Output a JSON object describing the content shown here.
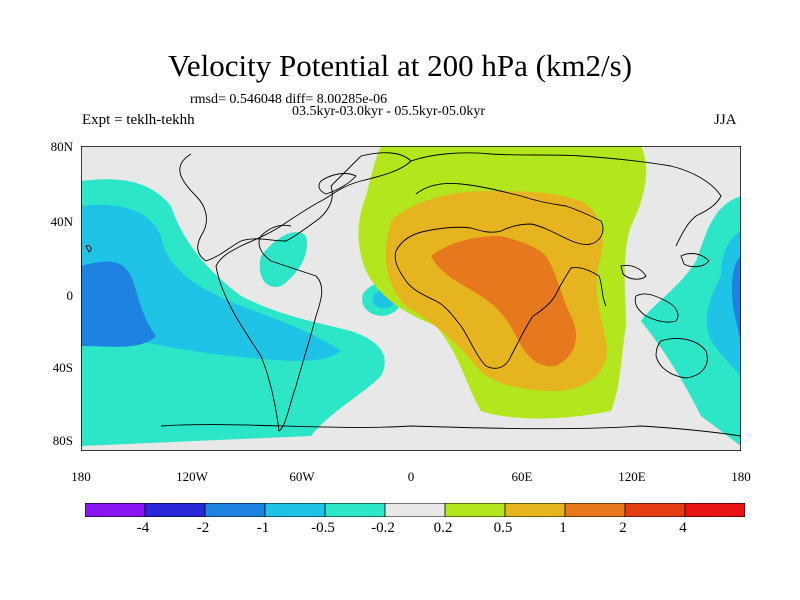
{
  "title": "Velocity Potential at 200 hPa (km2/s)",
  "stats_line": "rmsd= 0.546048 diff= 8.00285e-06",
  "period_line": "03.5kyr-03.0kyr - 05.5kyr-05.0kyr",
  "experiment": "Expt = teklh-tekhh",
  "season": "JJA",
  "lat_labels": [
    "80N",
    "40N",
    "0",
    "40S",
    "80S"
  ],
  "lon_labels": [
    "180",
    "120W",
    "60W",
    "0",
    "60E",
    "120E",
    "180"
  ],
  "colorbar": {
    "colors": [
      "#8a14f2",
      "#2828d6",
      "#1e82e0",
      "#1ec3e6",
      "#2de6c8",
      "#e8e8e8",
      "#b4e61e",
      "#e6b41e",
      "#e6781e",
      "#e63c14",
      "#e61414"
    ],
    "labels": [
      "-4",
      "-2",
      "-1",
      "-0.5",
      "-0.2",
      "0.2",
      "0.5",
      "1",
      "2",
      "4"
    ]
  }
}
